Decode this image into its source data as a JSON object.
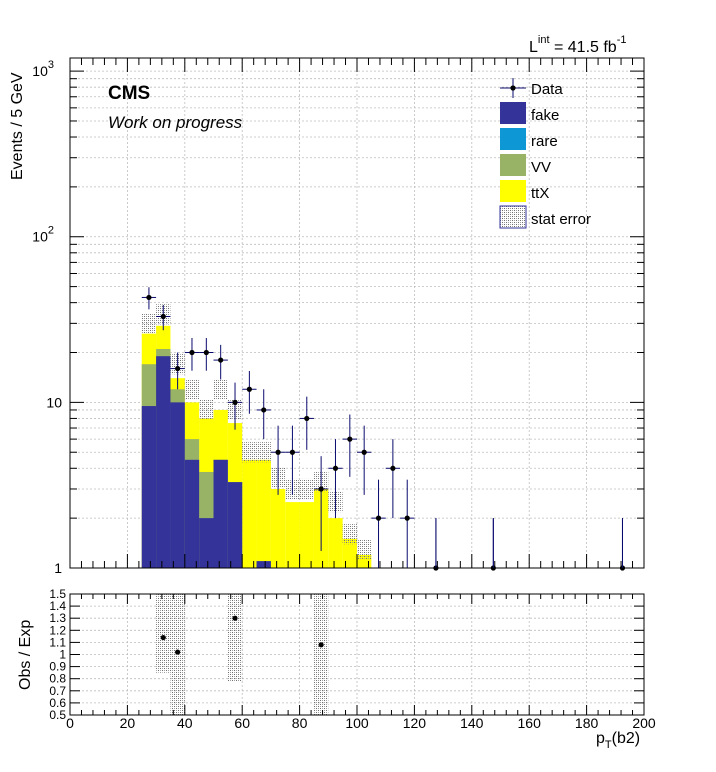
{
  "header": {
    "lumi_main": "L",
    "lumi_super": "int",
    "lumi_value": " = 41.5 fb",
    "lumi_unit_super": "-1"
  },
  "labels": {
    "experiment": "CMS",
    "status": "Work on progress",
    "ylabel_top": "Events / 5 GeV",
    "ylabel_bottom": "Obs / Exp",
    "xlabel_main": "p",
    "xlabel_sub": "T",
    "xlabel_rest": "(b2)"
  },
  "colors": {
    "fake": "#333399",
    "rare": "#0d97d5",
    "VV": "#99b366",
    "ttX": "#ffff00",
    "data": "#000000",
    "error_bar": "#0a0a6e",
    "stat_error": "#b4b4b4",
    "grid": "#bdbdbd"
  },
  "chart_data": [
    {
      "type": "bar",
      "stacked": true,
      "yscale": "log",
      "ylabel": "Events / 5 GeV",
      "xlabel": "p_T(b2)",
      "xlim": [
        0,
        200
      ],
      "ylim": [
        1,
        1200
      ],
      "ytick_labels": [
        "1",
        "10",
        "10²",
        "10³"
      ],
      "xtick_labels": [
        "0",
        "20",
        "40",
        "60",
        "80",
        "100",
        "120",
        "140",
        "160",
        "180",
        "200"
      ],
      "grid": true,
      "legend_position": "top-right",
      "legend": [
        "Data",
        "fake",
        "rare",
        "VV",
        "ttX",
        "stat error"
      ],
      "bin_edges": [
        25,
        30,
        35,
        40,
        45,
        50,
        55,
        60,
        65,
        70,
        75,
        80,
        85,
        90,
        95,
        100,
        105
      ],
      "series": [
        {
          "name": "fake",
          "values": [
            9.5,
            19,
            10,
            4.5,
            2,
            4.5,
            3.3,
            1,
            1.1,
            1,
            1,
            1,
            1,
            1,
            1,
            1
          ]
        },
        {
          "name": "rare",
          "values": [
            0,
            0,
            0,
            0,
            0,
            0,
            0,
            0,
            0,
            0,
            0,
            0,
            0,
            0,
            0,
            0
          ]
        },
        {
          "name": "VV",
          "values": [
            17,
            21,
            12,
            6,
            3.8,
            4.5,
            3.3,
            1,
            1.1,
            1,
            1,
            1,
            1,
            1,
            1,
            1
          ]
        },
        {
          "name": "ttX",
          "values": [
            26,
            29,
            14,
            10,
            8,
            9,
            7.5,
            4.5,
            4.5,
            3,
            2.5,
            2.5,
            3,
            2,
            1.5,
            1.2
          ]
        }
      ],
      "total": [
        30,
        34,
        17,
        12,
        9,
        12,
        9,
        5,
        5,
        3.5,
        3,
        3,
        3.3,
        2.5,
        1.6,
        1.3
      ],
      "data_points": [
        {
          "x": 27.5,
          "y": 43
        },
        {
          "x": 32.5,
          "y": 33
        },
        {
          "x": 37.5,
          "y": 16
        },
        {
          "x": 42.5,
          "y": 20
        },
        {
          "x": 47.5,
          "y": 20
        },
        {
          "x": 52.5,
          "y": 18
        },
        {
          "x": 57.5,
          "y": 10
        },
        {
          "x": 62.5,
          "y": 12
        },
        {
          "x": 67.5,
          "y": 9
        },
        {
          "x": 72.5,
          "y": 5
        },
        {
          "x": 77.5,
          "y": 5
        },
        {
          "x": 82.5,
          "y": 8
        },
        {
          "x": 87.5,
          "y": 3
        },
        {
          "x": 92.5,
          "y": 4
        },
        {
          "x": 97.5,
          "y": 6
        },
        {
          "x": 102.5,
          "y": 5
        },
        {
          "x": 107.5,
          "y": 2
        },
        {
          "x": 112.5,
          "y": 4
        },
        {
          "x": 117.5,
          "y": 2
        },
        {
          "x": 127.5,
          "y": 1
        },
        {
          "x": 147.5,
          "y": 1
        },
        {
          "x": 192.5,
          "y": 1
        }
      ],
      "empty_bin_error_x": [
        127.5,
        147.5,
        192.5
      ]
    },
    {
      "type": "scatter",
      "ylabel": "Obs / Exp",
      "xlabel": "p_T(b2)",
      "xlim": [
        0,
        200
      ],
      "ylim": [
        0.5,
        1.5
      ],
      "ytick_labels": [
        "0.5",
        "0.6",
        "0.7",
        "0.8",
        "0.9",
        "1",
        "1.1",
        "1.2",
        "1.3",
        "1.4",
        "1.5"
      ],
      "xtick_labels": [
        "0",
        "20",
        "40",
        "60",
        "80",
        "100",
        "120",
        "140",
        "160",
        "180",
        "200"
      ],
      "grid": true,
      "points": [
        {
          "x": 32.5,
          "y": 1.14
        },
        {
          "x": 37.5,
          "y": 1.02
        },
        {
          "x": 57.5,
          "y": 1.3
        },
        {
          "x": 87.5,
          "y": 1.08
        }
      ],
      "error_bands": [
        {
          "x0": 30,
          "x1": 35,
          "y0": 0.85,
          "y1": 1.5
        },
        {
          "x0": 35,
          "x1": 40,
          "y0": 0.5,
          "y1": 1.5
        },
        {
          "x0": 55,
          "x1": 60,
          "y0": 0.78,
          "y1": 1.5
        },
        {
          "x0": 85,
          "x1": 90,
          "y0": 0.5,
          "y1": 1.5
        }
      ]
    }
  ]
}
